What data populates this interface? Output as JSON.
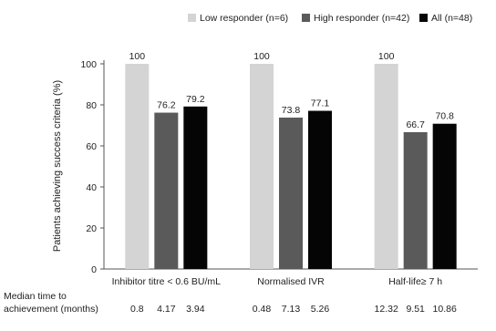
{
  "chart_data": {
    "type": "bar",
    "ylabel": "Patients achieving success criteria (%)",
    "ylim": [
      0,
      100
    ],
    "yticks": [
      0,
      20,
      40,
      60,
      80,
      100
    ],
    "legend_position": "top",
    "categories": [
      "Inhibitor titre < 0.6 BU/mL",
      "Normalised IVR",
      "Half-life≥ 7 h"
    ],
    "series": [
      {
        "name": "Low responder (n=6)",
        "color": "#d4d4d4",
        "values": [
          100,
          100,
          100
        ],
        "labels": [
          "100",
          "100",
          "100"
        ]
      },
      {
        "name": "High responder (n=42)",
        "color": "#5a5a5a",
        "values": [
          76.2,
          73.8,
          66.7
        ],
        "labels": [
          "76.2",
          "73.8",
          "66.7"
        ]
      },
      {
        "name": "All (n=48)",
        "color": "#050505",
        "values": [
          79.2,
          77.1,
          70.8
        ],
        "labels": [
          "79.2",
          "77.1",
          "70.8"
        ]
      }
    ],
    "footer": {
      "label_line1": "Median time to",
      "label_line2": "achievement (months)",
      "values": [
        [
          "0.8",
          "4.17",
          "3.94"
        ],
        [
          "0.48",
          "7.13",
          "5.26"
        ],
        [
          "12.32",
          "9.51",
          "10.86"
        ]
      ]
    }
  }
}
